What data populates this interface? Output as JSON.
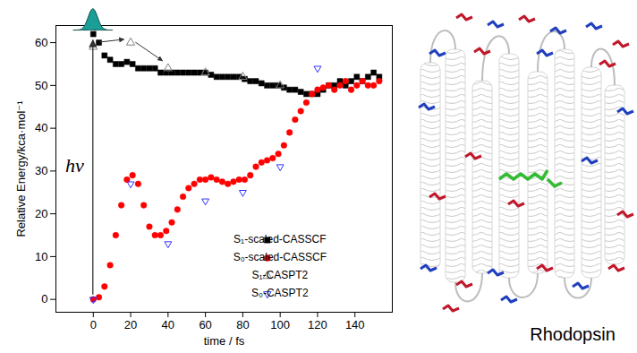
{
  "chart_data": {
    "type": "scatter",
    "x_label": "time / fs",
    "y_label": "Relative Energy/kca·mol⁻¹",
    "xlim": [
      -20,
      160
    ],
    "xticks": [
      0,
      20,
      40,
      60,
      80,
      100,
      120,
      140
    ],
    "ylim": [
      -3,
      64
    ],
    "yticks": [
      0,
      10,
      20,
      30,
      40,
      50,
      60
    ],
    "legend": "bottom-right",
    "annotations": [
      "hν"
    ],
    "series": [
      {
        "name": "S₁-scaled-CASSCF",
        "color": "#000000",
        "marker": "square",
        "x": [
          0,
          3,
          6,
          9,
          12,
          15,
          18,
          21,
          24,
          27,
          30,
          33,
          36,
          39,
          42,
          45,
          48,
          51,
          54,
          57,
          60,
          63,
          66,
          69,
          72,
          75,
          78,
          81,
          84,
          87,
          90,
          93,
          96,
          99,
          102,
          105,
          108,
          111,
          114,
          117,
          120,
          123,
          126,
          129,
          132,
          135,
          138,
          141,
          144,
          147,
          150,
          153
        ],
        "values": [
          62,
          60,
          57,
          56,
          55,
          55,
          55.5,
          55,
          54,
          54,
          54,
          54,
          53,
          53,
          53,
          53,
          53,
          53,
          53,
          53,
          53,
          52.5,
          52,
          52,
          52,
          52,
          52,
          51.5,
          51,
          51,
          50.5,
          50,
          50,
          50,
          49.5,
          49,
          49,
          48.5,
          48,
          48,
          48,
          49,
          50,
          50,
          51,
          50,
          51,
          52,
          51,
          52,
          53,
          52
        ]
      },
      {
        "name": "S₀-scaled-CASSCF",
        "color": "#ff0000",
        "marker": "circle",
        "x": [
          0,
          3,
          6,
          9,
          12,
          15,
          18,
          21,
          24,
          27,
          30,
          33,
          36,
          39,
          42,
          45,
          48,
          51,
          54,
          57,
          60,
          63,
          66,
          69,
          72,
          75,
          78,
          81,
          84,
          87,
          90,
          93,
          96,
          99,
          102,
          105,
          108,
          111,
          114,
          117,
          120,
          123,
          126,
          129,
          132,
          135,
          138,
          141,
          144,
          147,
          150,
          153
        ],
        "values": [
          0,
          0.5,
          3,
          8,
          15,
          22,
          28,
          29,
          27,
          22,
          17,
          15,
          15,
          16,
          18,
          21,
          24,
          26,
          27,
          28,
          28,
          28.5,
          28,
          27.5,
          27,
          27.5,
          28,
          28,
          29,
          31,
          32,
          32.5,
          33,
          34,
          36,
          39,
          42,
          44,
          46,
          48,
          49,
          49.5,
          50,
          49,
          50,
          51,
          49,
          50,
          51,
          50,
          50,
          51
        ]
      },
      {
        "name": "S₁-CASPT2",
        "color": "#808080",
        "marker": "open-triangle",
        "x": [
          0,
          20,
          40,
          60,
          80,
          100
        ],
        "values": [
          59,
          60,
          54,
          53,
          52,
          50
        ]
      },
      {
        "name": "S₀-CASPT2",
        "color": "#3333ff",
        "marker": "open-triangle-down",
        "x": [
          0,
          20,
          40,
          60,
          80,
          100,
          120
        ],
        "values": [
          0,
          27,
          13,
          23,
          25,
          31,
          54
        ]
      }
    ]
  },
  "image": {
    "label": "Rhodopsin"
  }
}
